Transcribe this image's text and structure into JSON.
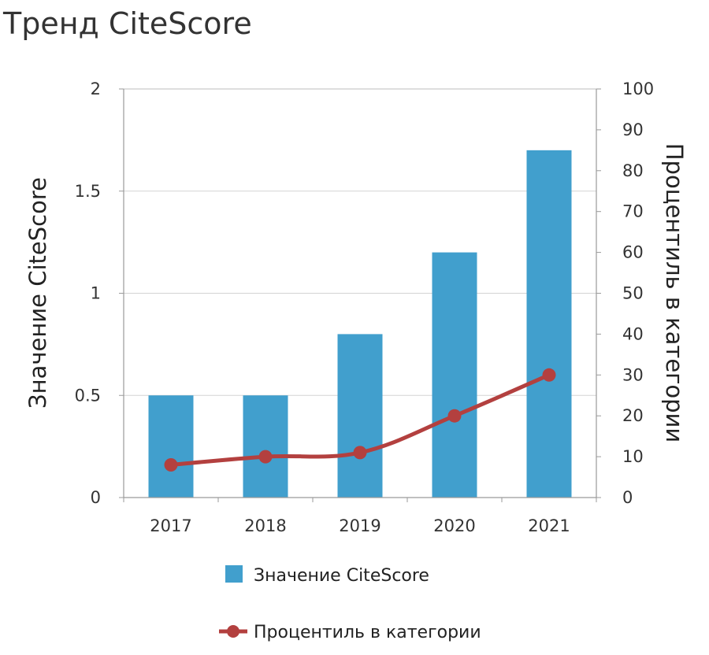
{
  "page": {
    "title": "Тренд CiteScore"
  },
  "chart_data": {
    "type": "bar",
    "categories": [
      "2017",
      "2018",
      "2019",
      "2020",
      "2021"
    ],
    "series": [
      {
        "name": "Значение CiteScore",
        "type": "bar",
        "axis": "left",
        "values": [
          0.5,
          0.5,
          0.8,
          1.2,
          1.7
        ],
        "color": "#419fcd"
      },
      {
        "name": "Процентиль в категории",
        "type": "line",
        "axis": "right",
        "values": [
          8,
          10,
          11,
          20,
          30
        ],
        "color": "#b3403f"
      }
    ],
    "ylabel": "Значение CiteScore",
    "y2label": "Процентиль в категории",
    "ylim": [
      0,
      2
    ],
    "y2lim": [
      0,
      100
    ],
    "yticks": [
      "0",
      "0.5",
      "1",
      "1.5",
      "2"
    ],
    "y2ticks": [
      "0",
      "10",
      "20",
      "30",
      "40",
      "50",
      "60",
      "70",
      "80",
      "90",
      "100"
    ],
    "grid": true,
    "legend_position": "bottom"
  }
}
